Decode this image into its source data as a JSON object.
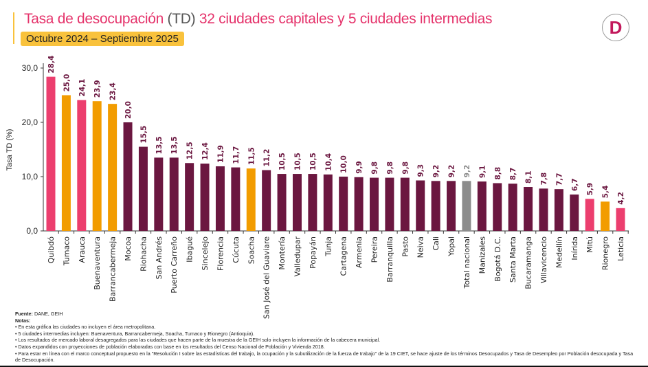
{
  "header": {
    "title_part1": "Tasa de desocupación",
    "title_part2": "(TD)",
    "title_part3": "32 ciudades capitales y 5 ciudades intermedias",
    "subtitle": "Octubre 2024 – Septiembre 2025",
    "logo_letter": "D"
  },
  "colors": {
    "capital": "#6B1740",
    "highlight": "#EC3E6E",
    "intermediate": "#F29C00",
    "national": "#8C8C8C",
    "label": "#6B1740"
  },
  "chart_data": {
    "type": "bar",
    "ylabel": "Tasa TD (%)",
    "ylim": [
      0,
      30
    ],
    "yticks": [
      "0,0",
      "10,0",
      "20,0",
      "30,0"
    ],
    "grid": false,
    "categories": [
      "Quibdó",
      "Tumaco",
      "Arauca",
      "Buenaventura",
      "Barrancabermeja",
      "Mocoa",
      "Riohacha",
      "San Andrés",
      "Puerto Carreño",
      "Ibagué",
      "Sincelejo",
      "Florencia",
      "Cúcuta",
      "Soacha",
      "San José del Guaviare",
      "Montería",
      "Valledupar",
      "Popayán",
      "Tunja",
      "Cartagena",
      "Armenia",
      "Pereira",
      "Barranquilla",
      "Pasto",
      "Neiva",
      "Cali",
      "Yopal",
      "Total nacional",
      "Manizales",
      "Bogotá D.C.",
      "Santa Marta",
      "Bucaramanga",
      "Villavicencio",
      "Medellín",
      "Inírida",
      "Mitú",
      "Rionegro",
      "Leticia"
    ],
    "values": [
      28.4,
      25.0,
      24.1,
      23.9,
      23.4,
      20.0,
      15.5,
      13.5,
      13.5,
      12.5,
      12.4,
      11.9,
      11.7,
      11.5,
      11.2,
      10.5,
      10.5,
      10.5,
      10.4,
      10.0,
      9.9,
      9.8,
      9.8,
      9.8,
      9.3,
      9.2,
      9.2,
      9.2,
      9.1,
      8.8,
      8.7,
      8.1,
      7.8,
      7.7,
      6.7,
      5.9,
      5.4,
      4.2
    ],
    "data_labels": [
      "28,4",
      "25,0",
      "24,1",
      "23,9",
      "23,4",
      "20,0",
      "15,5",
      "13,5",
      "13,5",
      "12,5",
      "12,4",
      "11,9",
      "11,7",
      "11,5",
      "11,2",
      "10,5",
      "10,5",
      "10,5",
      "10,4",
      "10,0",
      "9,9",
      "9,8",
      "9,8",
      "9,8",
      "9,3",
      "9,2",
      "9,2",
      "9,2",
      "9,1",
      "8,8",
      "8,7",
      "8,1",
      "7,8",
      "7,7",
      "6,7",
      "5,9",
      "5,4",
      "4,2"
    ],
    "groups": [
      "highlight",
      "intermediate",
      "highlight",
      "intermediate",
      "intermediate",
      "capital",
      "capital",
      "capital",
      "capital",
      "capital",
      "capital",
      "capital",
      "capital",
      "intermediate",
      "capital",
      "capital",
      "capital",
      "capital",
      "capital",
      "capital",
      "capital",
      "capital",
      "capital",
      "capital",
      "capital",
      "capital",
      "capital",
      "national",
      "capital",
      "capital",
      "capital",
      "capital",
      "capital",
      "capital",
      "capital",
      "highlight",
      "intermediate",
      "highlight"
    ]
  },
  "notes": {
    "source_label": "Fuente:",
    "source": "DANE, GEIH",
    "notes_label": "Notas:",
    "items": [
      "• En esta gráfica las ciudades no incluyen el área metropolitana.",
      "• 5 ciudades intermedias incluyen: Buenaventura, Barrancabermeja, Soacha, Tumaco y Rionegro (Antioquia).",
      "• Los resultados de mercado laboral desagregados para las ciudades que hacen parte de la muestra de la GEIH solo incluyen la información de la cabecera municipal.",
      "• Datos expandidos con proyecciones de población elaboradas con base en los resultados del Censo Nacional de Población y Vivienda 2018.",
      "• Para estar en línea con el marco conceptual propuesto en la \"Resolución I sobre las estadísticas del trabajo, la ocupación y la subutilización de la fuerza de trabajo\" de la 19 CIET, se hace ajuste de los términos Desocupados y Tasa de Desempleo por Población desocupada y Tasa de Desocupación."
    ]
  }
}
